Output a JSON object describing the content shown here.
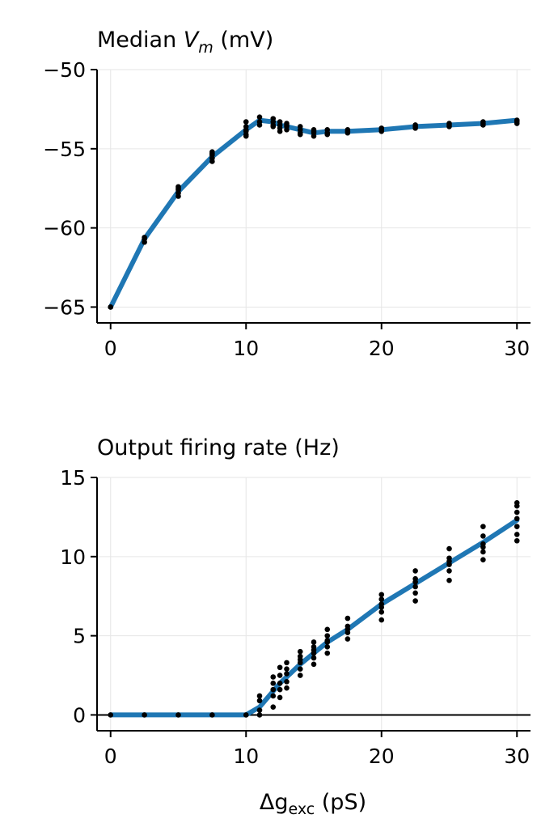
{
  "chart_data": [
    {
      "type": "line",
      "title": "Median",
      "title_symbol": "V",
      "title_subscript": "m",
      "title_unit": " (mV)",
      "xlim": [
        -1,
        31
      ],
      "ylim": [
        -66,
        -50
      ],
      "xticks": [
        0,
        10,
        20,
        30
      ],
      "yticks": [
        -65,
        -60,
        -55,
        -50
      ],
      "ytick_labels": [
        "−65",
        "−60",
        "−55",
        "−50"
      ],
      "grid": true,
      "line_color": "#1f77b4",
      "line": {
        "x": [
          0,
          2.5,
          5,
          7.5,
          10,
          11,
          12,
          12.5,
          13,
          14,
          15,
          16,
          17.5,
          20,
          22.5,
          25,
          27.5,
          30
        ],
        "y": [
          -65.0,
          -60.7,
          -57.7,
          -55.5,
          -53.8,
          -53.2,
          -53.3,
          -53.5,
          -53.6,
          -53.8,
          -54.0,
          -53.9,
          -53.9,
          -53.8,
          -53.6,
          -53.5,
          -53.4,
          -53.2
        ]
      },
      "points": {
        "x": [
          0,
          0,
          2.5,
          2.5,
          2.5,
          5,
          5,
          5,
          5,
          5,
          7.5,
          7.5,
          7.5,
          7.5,
          7.5,
          10,
          10,
          10,
          10,
          10,
          10,
          11,
          11,
          11,
          12,
          12,
          12,
          12,
          12.5,
          12.5,
          12.5,
          12.5,
          13,
          13,
          13,
          13,
          14,
          14,
          14,
          14,
          15,
          15,
          15,
          15,
          16,
          16,
          16,
          17.5,
          17.5,
          17.5,
          20,
          20,
          20,
          22.5,
          22.5,
          22.5,
          25,
          25,
          25,
          27.5,
          27.5,
          27.5,
          30,
          30,
          30
        ],
        "y": [
          -65.0,
          -65.0,
          -60.6,
          -60.7,
          -60.9,
          -57.4,
          -57.6,
          -57.8,
          -58.0,
          -57.5,
          -55.2,
          -55.4,
          -55.6,
          -55.8,
          -55.3,
          -53.3,
          -53.6,
          -53.9,
          -54.2,
          -53.8,
          -54.1,
          -53.0,
          -53.3,
          -53.5,
          -53.1,
          -53.3,
          -53.5,
          -53.6,
          -53.3,
          -53.5,
          -53.7,
          -53.9,
          -53.4,
          -53.6,
          -53.8,
          -53.5,
          -53.6,
          -53.8,
          -54.0,
          -54.1,
          -53.9,
          -54.0,
          -54.2,
          -53.8,
          -53.8,
          -54.0,
          -54.1,
          -53.8,
          -53.9,
          -54.0,
          -53.8,
          -53.9,
          -53.7,
          -53.5,
          -53.6,
          -53.7,
          -53.4,
          -53.5,
          -53.6,
          -53.3,
          -53.4,
          -53.5,
          -53.2,
          -53.3,
          -53.4
        ]
      }
    },
    {
      "type": "line",
      "title": "Output firing rate (Hz)",
      "xlabel_symbol": "Δg",
      "xlabel_subscript": "exc",
      "xlabel_unit": " (pS)",
      "xlim": [
        -1,
        31
      ],
      "ylim": [
        -1,
        15
      ],
      "xticks": [
        0,
        10,
        20,
        30
      ],
      "yticks": [
        0,
        5,
        10,
        15
      ],
      "ytick_labels": [
        "0",
        "5",
        "10",
        "15"
      ],
      "grid": true,
      "zero_line": true,
      "line_color": "#1f77b4",
      "line": {
        "x": [
          0,
          2.5,
          5,
          7.5,
          10,
          11,
          12,
          12.5,
          13,
          14,
          15,
          16,
          17.5,
          20,
          22.5,
          25,
          27.5,
          30
        ],
        "y": [
          0,
          0,
          0,
          0,
          0,
          0.5,
          1.5,
          2.0,
          2.4,
          3.2,
          3.9,
          4.6,
          5.4,
          7.0,
          8.3,
          9.6,
          10.9,
          12.3
        ]
      },
      "points": {
        "x": [
          0,
          2.5,
          5,
          7.5,
          10,
          11,
          11,
          11,
          11,
          12,
          12,
          12,
          12,
          12,
          12.5,
          12.5,
          12.5,
          12.5,
          12.5,
          13,
          13,
          13,
          13,
          13,
          14,
          14,
          14,
          14,
          14,
          14,
          15,
          15,
          15,
          15,
          15,
          15,
          16,
          16,
          16,
          16,
          16,
          16,
          17.5,
          17.5,
          17.5,
          17.5,
          17.5,
          20,
          20,
          20,
          20,
          20,
          20,
          22.5,
          22.5,
          22.5,
          22.5,
          22.5,
          22.5,
          25,
          25,
          25,
          25,
          25,
          25,
          27.5,
          27.5,
          27.5,
          27.5,
          27.5,
          27.5,
          30,
          30,
          30,
          30,
          30,
          30,
          30
        ],
        "y": [
          0,
          0,
          0,
          0,
          0,
          0,
          0.3,
          0.9,
          1.2,
          0.5,
          1.2,
          1.6,
          2.0,
          2.4,
          1.1,
          1.6,
          2.0,
          2.5,
          3.0,
          1.7,
          2.1,
          2.6,
          2.9,
          3.3,
          2.5,
          2.9,
          3.3,
          3.7,
          4.0,
          3.5,
          3.2,
          3.6,
          3.9,
          4.3,
          4.6,
          4.1,
          3.9,
          4.3,
          4.7,
          5.0,
          5.4,
          4.6,
          4.8,
          5.2,
          5.6,
          6.1,
          5.4,
          6.0,
          6.5,
          7.0,
          7.3,
          7.6,
          6.8,
          7.2,
          7.7,
          8.1,
          8.6,
          9.1,
          8.4,
          8.5,
          9.1,
          9.5,
          9.9,
          10.5,
          9.7,
          9.8,
          10.3,
          10.8,
          11.3,
          11.9,
          10.6,
          11.0,
          11.4,
          11.9,
          12.4,
          12.8,
          13.2,
          13.4
        ]
      }
    }
  ]
}
